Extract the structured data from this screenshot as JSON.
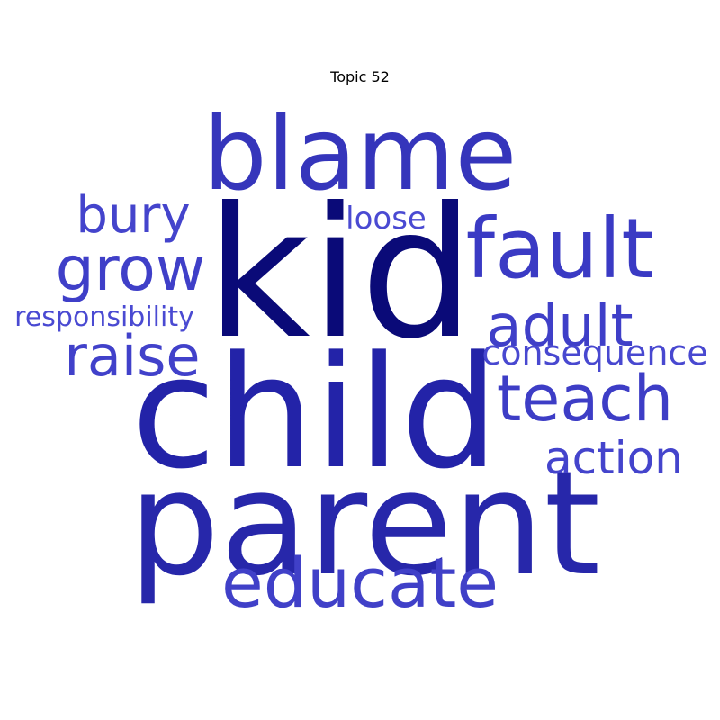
{
  "title": "Topic 52",
  "words": [
    {
      "text": "kid",
      "weight": 1.0,
      "color": "#0a0a78"
    },
    {
      "text": "child",
      "weight": 0.86,
      "color": "#2323a8"
    },
    {
      "text": "parent",
      "weight": 0.8,
      "color": "#2727aa"
    },
    {
      "text": "blame",
      "weight": 0.6,
      "color": "#3535bb"
    },
    {
      "text": "fault",
      "weight": 0.5,
      "color": "#3a3ac4"
    },
    {
      "text": "educate",
      "weight": 0.42,
      "color": "#4040c8"
    },
    {
      "text": "teach",
      "weight": 0.39,
      "color": "#3d3dc6"
    },
    {
      "text": "grow",
      "weight": 0.35,
      "color": "#3f3fc8"
    },
    {
      "text": "adult",
      "weight": 0.34,
      "color": "#3f3fc8"
    },
    {
      "text": "raise",
      "weight": 0.34,
      "color": "#4141ca"
    },
    {
      "text": "bury",
      "weight": 0.3,
      "color": "#4444cc"
    },
    {
      "text": "action",
      "weight": 0.29,
      "color": "#4444cc"
    },
    {
      "text": "consequence",
      "weight": 0.22,
      "color": "#4848d0"
    },
    {
      "text": "loose",
      "weight": 0.19,
      "color": "#4a4ad2"
    },
    {
      "text": "responsibility",
      "weight": 0.17,
      "color": "#4a4ad2"
    }
  ]
}
